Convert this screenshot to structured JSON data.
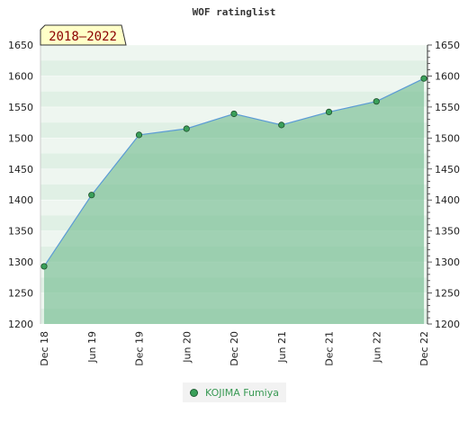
{
  "chart_data": {
    "type": "area",
    "title": "WOF ratinglist",
    "badge": "2018–2022",
    "x_ticks": [
      "Dec 18",
      "Jun 19",
      "Dec 19",
      "Jun 20",
      "Dec 20",
      "Jun 21",
      "Dec 21",
      "Jun 22",
      "Dec 22"
    ],
    "ylim": [
      1200,
      1650
    ],
    "y_ticks": [
      1200,
      1250,
      1300,
      1350,
      1400,
      1450,
      1500,
      1550,
      1600,
      1650
    ],
    "legend_position": "bottom",
    "series": [
      {
        "name": "KOJIMA Fumiya",
        "x": [
          "Dec 18",
          "Jun 19",
          "Dec 19",
          "Jun 20",
          "Dec 20",
          "Jun 21",
          "Dec 21",
          "Jun 22",
          "Dec 22"
        ],
        "values": [
          1293,
          1408,
          1505,
          1515,
          1539,
          1521,
          1542,
          1559,
          1596
        ]
      }
    ],
    "colors": {
      "area_fill": "#6db98a",
      "line": "#5b9bd5",
      "marker": "#3aa05a",
      "badge_bg": "#ffffc8"
    }
  }
}
